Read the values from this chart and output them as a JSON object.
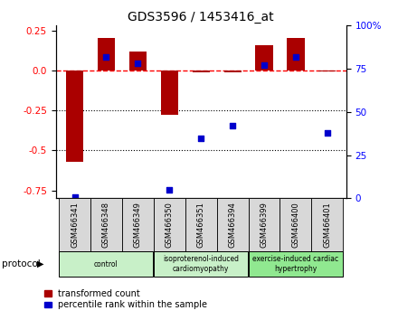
{
  "title": "GDS3596 / 1453416_at",
  "samples": [
    "GSM466341",
    "GSM466348",
    "GSM466349",
    "GSM466350",
    "GSM466351",
    "GSM466394",
    "GSM466399",
    "GSM466400",
    "GSM466401"
  ],
  "transformed_count": [
    -0.57,
    0.2,
    0.12,
    -0.28,
    -0.01,
    -0.01,
    0.16,
    0.2,
    -0.005
  ],
  "percentile_rank": [
    1.0,
    82.0,
    78.0,
    5.0,
    35.0,
    42.0,
    77.0,
    82.0,
    38.0
  ],
  "bar_color": "#aa0000",
  "dot_color": "#0000cc",
  "ylim_left": [
    -0.8,
    0.28
  ],
  "ylim_right": [
    0,
    100
  ],
  "yticks_left": [
    -0.75,
    -0.5,
    -0.25,
    0.0,
    0.25
  ],
  "yticks_right": [
    0,
    25,
    50,
    75,
    100
  ],
  "hline_y": 0.0,
  "dotted_lines": [
    -0.25,
    -0.5
  ],
  "bar_width": 0.55,
  "groups": [
    {
      "label": "control",
      "start": 0,
      "end": 2,
      "color": "#c8f0c8"
    },
    {
      "label": "isoproterenol-induced\ncardiomyopathy",
      "start": 3,
      "end": 5,
      "color": "#c8f0c8"
    },
    {
      "label": "exercise-induced cardiac\nhypertrophy",
      "start": 6,
      "end": 8,
      "color": "#90e890"
    }
  ],
  "legend_labels": [
    "transformed count",
    "percentile rank within the sample"
  ]
}
